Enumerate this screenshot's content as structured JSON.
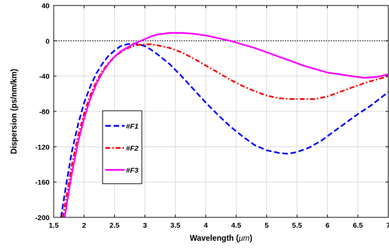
{
  "chart_data": {
    "type": "line",
    "xlabel": "Wavelength (",
    "xlabel_unit": "μm",
    "xlabel_close": ")",
    "ylabel": "Dispersion (ps/nm/km)",
    "xlim": [
      1.5,
      7
    ],
    "ylim": [
      -200,
      40
    ],
    "xticks": [
      1.5,
      2,
      2.5,
      3,
      3.5,
      4,
      4.5,
      5,
      5.5,
      6,
      6.5,
      7
    ],
    "xtick_labels": [
      "1.5",
      "2",
      "2.5",
      "3",
      "3.5",
      "4",
      "4.5",
      "5",
      "5.5",
      "6",
      "6.5",
      "7"
    ],
    "yticks": [
      40,
      0,
      -40,
      -80,
      -120,
      -160,
      -200
    ],
    "ytick_labels": [
      "40",
      "0",
      "-40",
      "-80",
      "-120",
      "-160",
      "-200"
    ],
    "grid": true,
    "zero_line": true,
    "legend_position": "lower-left",
    "series": [
      {
        "name": "#F1",
        "color": "#0000ff",
        "style": "dashed",
        "x": [
          1.62,
          1.7,
          1.8,
          1.9,
          2.0,
          2.1,
          2.2,
          2.3,
          2.4,
          2.5,
          2.6,
          2.7,
          2.8,
          2.9,
          3.0,
          3.1,
          3.2,
          3.4,
          3.6,
          3.8,
          4.0,
          4.2,
          4.4,
          4.6,
          4.8,
          5.0,
          5.2,
          5.35,
          5.5,
          5.7,
          5.9,
          6.1,
          6.3,
          6.5,
          6.7,
          7.0
        ],
        "y": [
          -200,
          -165,
          -125,
          -95,
          -70,
          -52,
          -37,
          -26,
          -17,
          -11,
          -6,
          -4,
          -3,
          -4,
          -6,
          -10,
          -15,
          -26,
          -40,
          -55,
          -70,
          -84,
          -97,
          -108,
          -118,
          -124,
          -127,
          -128,
          -126,
          -121,
          -113,
          -103,
          -93,
          -83,
          -74,
          -58
        ]
      },
      {
        "name": "#F2",
        "color": "#ff0000",
        "style": "dash-dot",
        "x": [
          1.65,
          1.7,
          1.8,
          1.9,
          2.0,
          2.1,
          2.2,
          2.3,
          2.4,
          2.5,
          2.6,
          2.7,
          2.8,
          2.9,
          3.0,
          3.1,
          3.2,
          3.4,
          3.6,
          3.8,
          4.0,
          4.2,
          4.4,
          4.6,
          4.8,
          5.0,
          5.2,
          5.4,
          5.6,
          5.8,
          6.0,
          6.2,
          6.4,
          6.6,
          6.8,
          7.0
        ],
        "y": [
          -200,
          -180,
          -140,
          -108,
          -82,
          -62,
          -46,
          -34,
          -25,
          -18,
          -13,
          -9,
          -6,
          -4.5,
          -4,
          -4,
          -5,
          -8,
          -13,
          -20,
          -28,
          -36,
          -44,
          -51,
          -57,
          -62,
          -65,
          -66,
          -66,
          -66,
          -63,
          -58,
          -53,
          -48,
          -44,
          -40
        ]
      },
      {
        "name": "#F3",
        "color": "#ff00ff",
        "style": "solid",
        "x": [
          1.68,
          1.75,
          1.8,
          1.9,
          2.0,
          2.1,
          2.2,
          2.3,
          2.4,
          2.5,
          2.6,
          2.7,
          2.8,
          2.9,
          3.0,
          3.1,
          3.2,
          3.4,
          3.6,
          3.8,
          4.0,
          4.2,
          4.4,
          4.6,
          4.8,
          5.0,
          5.2,
          5.4,
          5.6,
          5.8,
          6.0,
          6.2,
          6.4,
          6.6,
          6.8,
          7.0
        ],
        "y": [
          -200,
          -170,
          -150,
          -115,
          -88,
          -66,
          -49,
          -36,
          -26,
          -18,
          -12,
          -8,
          -4,
          -1,
          2,
          5,
          7,
          9,
          9,
          8,
          6,
          3,
          0,
          -4,
          -8,
          -13,
          -18,
          -23,
          -28,
          -32,
          -36,
          -38,
          -40,
          -42,
          -41,
          -38
        ]
      }
    ]
  }
}
